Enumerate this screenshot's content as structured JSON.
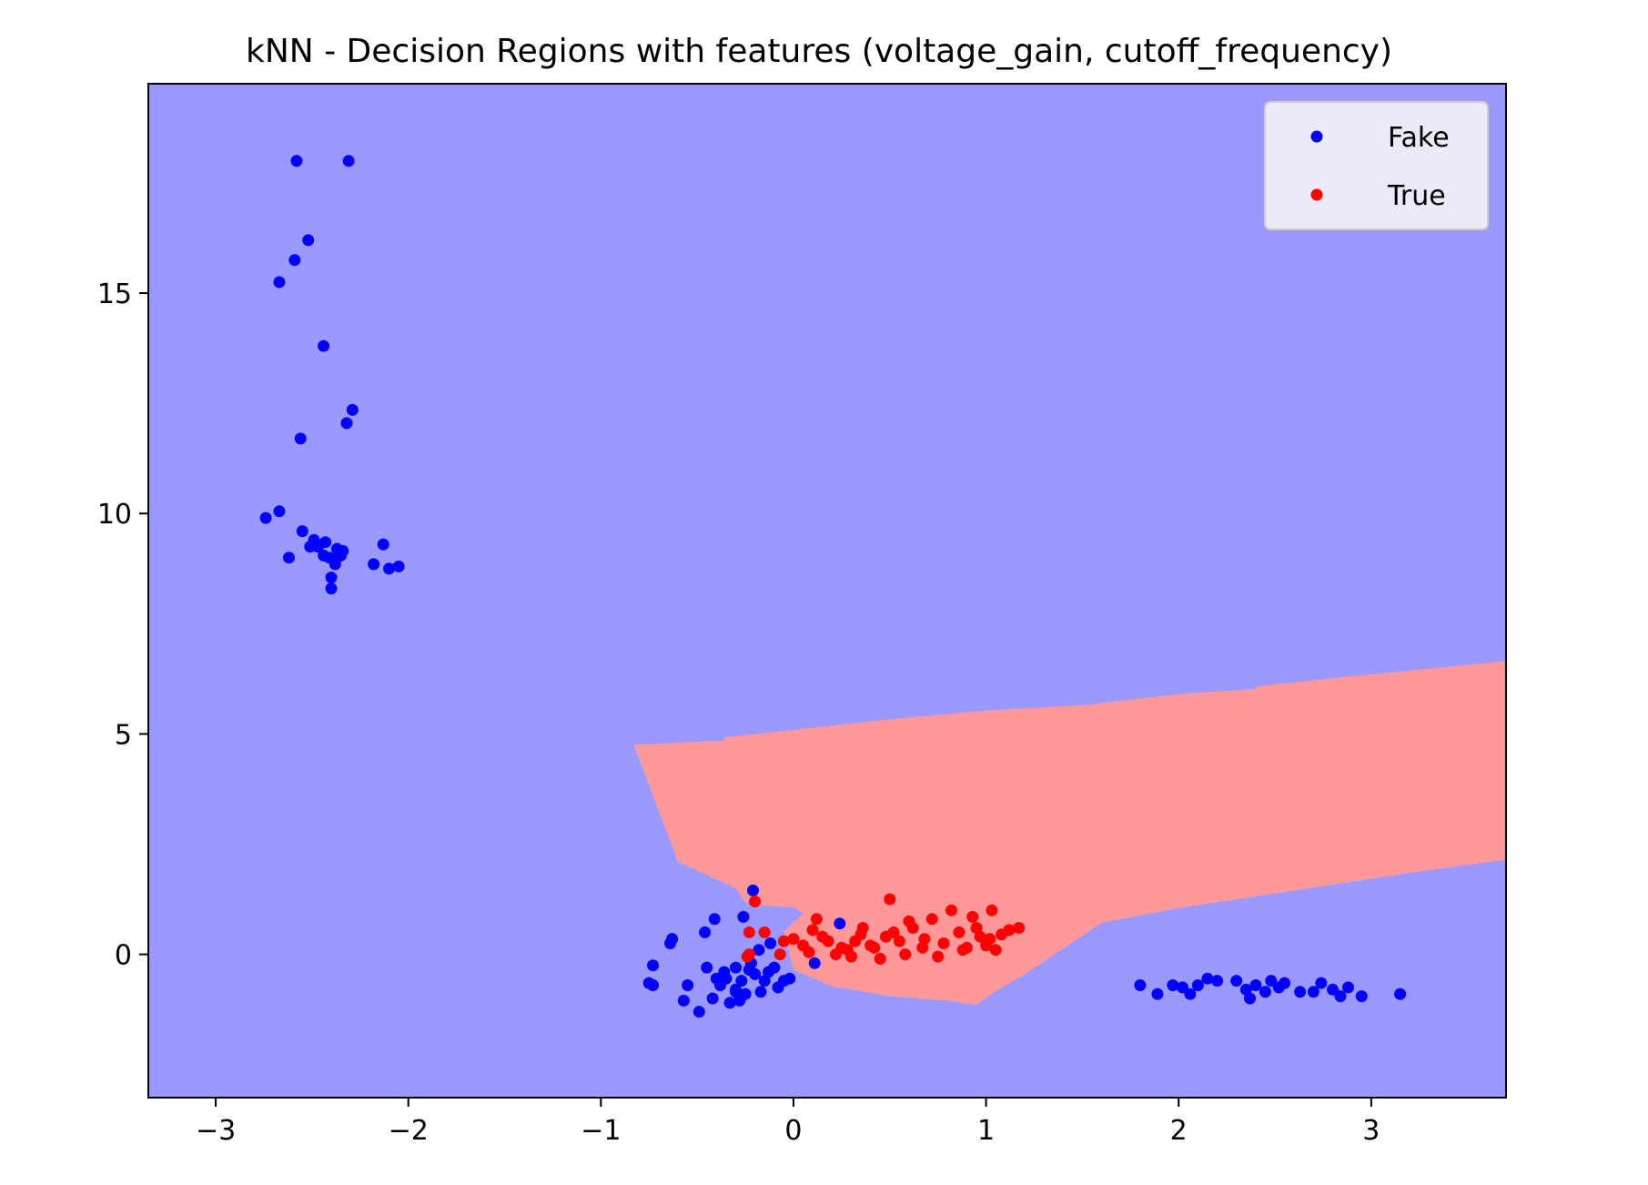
{
  "chart_data": {
    "type": "scatter",
    "title": "kNN - Decision Regions with features (voltage_gain, cutoff_frequency)",
    "xlabel": "",
    "ylabel": "",
    "xlim": [
      -3.35,
      3.7
    ],
    "ylim": [
      -3.25,
      19.75
    ],
    "x_ticks": [
      -3,
      -2,
      -1,
      0,
      1,
      2,
      3
    ],
    "x_tick_labels": [
      "−3",
      "−2",
      "−1",
      "0",
      "1",
      "2",
      "3"
    ],
    "y_ticks": [
      0,
      5,
      10,
      15
    ],
    "y_tick_labels": [
      "0",
      "5",
      "10",
      "15"
    ],
    "grid": false,
    "legend_position": "top-right",
    "background_region": {
      "class": "Fake",
      "color": "#9999ff"
    },
    "regions": [
      {
        "class": "True",
        "color": "#ff9999",
        "polygon": [
          [
            -0.83,
            4.75
          ],
          [
            -0.36,
            4.85
          ],
          [
            -0.36,
            4.92
          ],
          [
            0.5,
            5.33
          ],
          [
            1.0,
            5.53
          ],
          [
            1.5,
            5.65
          ],
          [
            2.0,
            5.9
          ],
          [
            2.4,
            6.02
          ],
          [
            2.4,
            6.08
          ],
          [
            3.0,
            6.35
          ],
          [
            3.7,
            6.65
          ],
          [
            3.7,
            2.15
          ],
          [
            3.2,
            1.85
          ],
          [
            2.5,
            1.38
          ],
          [
            2.0,
            1.05
          ],
          [
            1.6,
            0.72
          ],
          [
            1.2,
            -0.45
          ],
          [
            1.05,
            -0.83
          ],
          [
            0.95,
            -1.15
          ],
          [
            0.8,
            -1.05
          ],
          [
            0.5,
            -0.95
          ],
          [
            0.2,
            -0.72
          ],
          [
            0.0,
            -0.35
          ],
          [
            -0.05,
            0.52
          ],
          [
            0.05,
            0.92
          ],
          [
            0.0,
            1.07
          ],
          [
            -0.15,
            1.1
          ],
          [
            -0.25,
            1.18
          ],
          [
            -0.3,
            1.5
          ],
          [
            -0.6,
            2.1
          ],
          [
            -0.83,
            4.75
          ]
        ]
      }
    ],
    "series": [
      {
        "name": "Fake",
        "color": "#0000ff",
        "points": [
          [
            -2.58,
            18.0
          ],
          [
            -2.31,
            18.0
          ],
          [
            -2.52,
            16.2
          ],
          [
            -2.59,
            15.75
          ],
          [
            -2.67,
            15.25
          ],
          [
            -2.44,
            13.8
          ],
          [
            -2.29,
            12.35
          ],
          [
            -2.32,
            12.05
          ],
          [
            -2.56,
            11.7
          ],
          [
            -2.74,
            9.9
          ],
          [
            -2.67,
            10.05
          ],
          [
            -2.55,
            9.6
          ],
          [
            -2.49,
            9.4
          ],
          [
            -2.51,
            9.25
          ],
          [
            -2.62,
            9.0
          ],
          [
            -2.43,
            9.35
          ],
          [
            -2.44,
            9.05
          ],
          [
            -2.47,
            9.25
          ],
          [
            -2.37,
            9.2
          ],
          [
            -2.34,
            9.15
          ],
          [
            -2.37,
            9.0
          ],
          [
            -2.35,
            9.05
          ],
          [
            -2.41,
            9.0
          ],
          [
            -2.38,
            8.85
          ],
          [
            -2.4,
            8.55
          ],
          [
            -2.4,
            8.3
          ],
          [
            -2.13,
            9.3
          ],
          [
            -2.18,
            8.85
          ],
          [
            -2.1,
            8.75
          ],
          [
            -2.05,
            8.8
          ],
          [
            -0.21,
            1.45
          ],
          [
            -0.41,
            0.8
          ],
          [
            -0.46,
            0.5
          ],
          [
            -0.26,
            0.85
          ],
          [
            -0.63,
            0.35
          ],
          [
            -0.64,
            0.25
          ],
          [
            -0.73,
            -0.25
          ],
          [
            -0.75,
            -0.65
          ],
          [
            -0.73,
            -0.7
          ],
          [
            -0.55,
            -0.7
          ],
          [
            -0.57,
            -1.05
          ],
          [
            -0.49,
            -1.3
          ],
          [
            -0.42,
            -1.0
          ],
          [
            -0.45,
            -0.3
          ],
          [
            -0.35,
            -0.55
          ],
          [
            -0.3,
            -0.8
          ],
          [
            -0.25,
            -0.9
          ],
          [
            -0.2,
            -0.45
          ],
          [
            -0.15,
            -0.6
          ],
          [
            -0.1,
            -0.3
          ],
          [
            -0.05,
            -0.6
          ],
          [
            -0.33,
            -1.1
          ],
          [
            -0.28,
            -1.05
          ],
          [
            -0.38,
            -0.7
          ],
          [
            -0.22,
            -0.2
          ],
          [
            -0.18,
            0.1
          ],
          [
            -0.12,
            0.25
          ],
          [
            -0.08,
            -0.75
          ],
          [
            -0.02,
            -0.55
          ],
          [
            -0.3,
            -0.3
          ],
          [
            -0.4,
            -0.55
          ],
          [
            -0.27,
            -0.6
          ],
          [
            -0.23,
            -0.35
          ],
          [
            -0.17,
            -0.85
          ],
          [
            -0.13,
            -0.4
          ],
          [
            0.11,
            -0.2
          ],
          [
            0.24,
            0.7
          ],
          [
            -0.3,
            -0.85
          ],
          [
            -0.36,
            -0.4
          ],
          [
            1.8,
            -0.7
          ],
          [
            1.89,
            -0.9
          ],
          [
            1.97,
            -0.7
          ],
          [
            2.02,
            -0.75
          ],
          [
            2.06,
            -0.9
          ],
          [
            2.1,
            -0.7
          ],
          [
            2.15,
            -0.55
          ],
          [
            2.2,
            -0.6
          ],
          [
            2.3,
            -0.6
          ],
          [
            2.35,
            -0.8
          ],
          [
            2.37,
            -1.0
          ],
          [
            2.4,
            -0.7
          ],
          [
            2.45,
            -0.85
          ],
          [
            2.48,
            -0.6
          ],
          [
            2.52,
            -0.75
          ],
          [
            2.55,
            -0.65
          ],
          [
            2.63,
            -0.85
          ],
          [
            2.7,
            -0.85
          ],
          [
            2.74,
            -0.65
          ],
          [
            2.8,
            -0.8
          ],
          [
            2.84,
            -0.95
          ],
          [
            2.88,
            -0.75
          ],
          [
            2.95,
            -0.95
          ],
          [
            3.15,
            -0.9
          ]
        ]
      },
      {
        "name": "True",
        "color": "#ff0000",
        "points": [
          [
            -0.2,
            1.2
          ],
          [
            -0.23,
            0.5
          ],
          [
            -0.15,
            0.5
          ],
          [
            -0.24,
            -0.05
          ],
          [
            -0.23,
            0.0
          ],
          [
            -0.07,
            0.0
          ],
          [
            -0.05,
            0.3
          ],
          [
            0.0,
            0.35
          ],
          [
            0.05,
            0.2
          ],
          [
            0.08,
            0.05
          ],
          [
            0.12,
            0.8
          ],
          [
            0.15,
            0.4
          ],
          [
            0.18,
            0.3
          ],
          [
            0.22,
            0.0
          ],
          [
            0.28,
            0.1
          ],
          [
            0.32,
            0.3
          ],
          [
            0.36,
            0.6
          ],
          [
            0.4,
            0.2
          ],
          [
            0.45,
            -0.1
          ],
          [
            0.5,
            1.25
          ],
          [
            0.52,
            0.5
          ],
          [
            0.55,
            0.3
          ],
          [
            0.58,
            0.0
          ],
          [
            0.62,
            0.6
          ],
          [
            0.68,
            0.35
          ],
          [
            0.72,
            0.8
          ],
          [
            0.78,
            0.25
          ],
          [
            0.82,
            1.0
          ],
          [
            0.86,
            0.5
          ],
          [
            0.9,
            0.15
          ],
          [
            0.93,
            0.85
          ],
          [
            0.97,
            0.4
          ],
          [
            1.0,
            0.2
          ],
          [
            1.03,
            1.0
          ],
          [
            1.05,
            0.1
          ],
          [
            1.08,
            0.45
          ],
          [
            1.12,
            0.55
          ],
          [
            1.17,
            0.6
          ],
          [
            0.42,
            0.15
          ],
          [
            0.6,
            0.75
          ],
          [
            0.3,
            -0.05
          ],
          [
            0.75,
            -0.05
          ],
          [
            0.88,
            0.1
          ],
          [
            1.02,
            0.35
          ],
          [
            0.48,
            0.4
          ],
          [
            0.25,
            0.15
          ],
          [
            0.67,
            0.15
          ],
          [
            0.95,
            0.6
          ],
          [
            0.1,
            0.55
          ],
          [
            0.35,
            0.45
          ]
        ]
      }
    ]
  }
}
